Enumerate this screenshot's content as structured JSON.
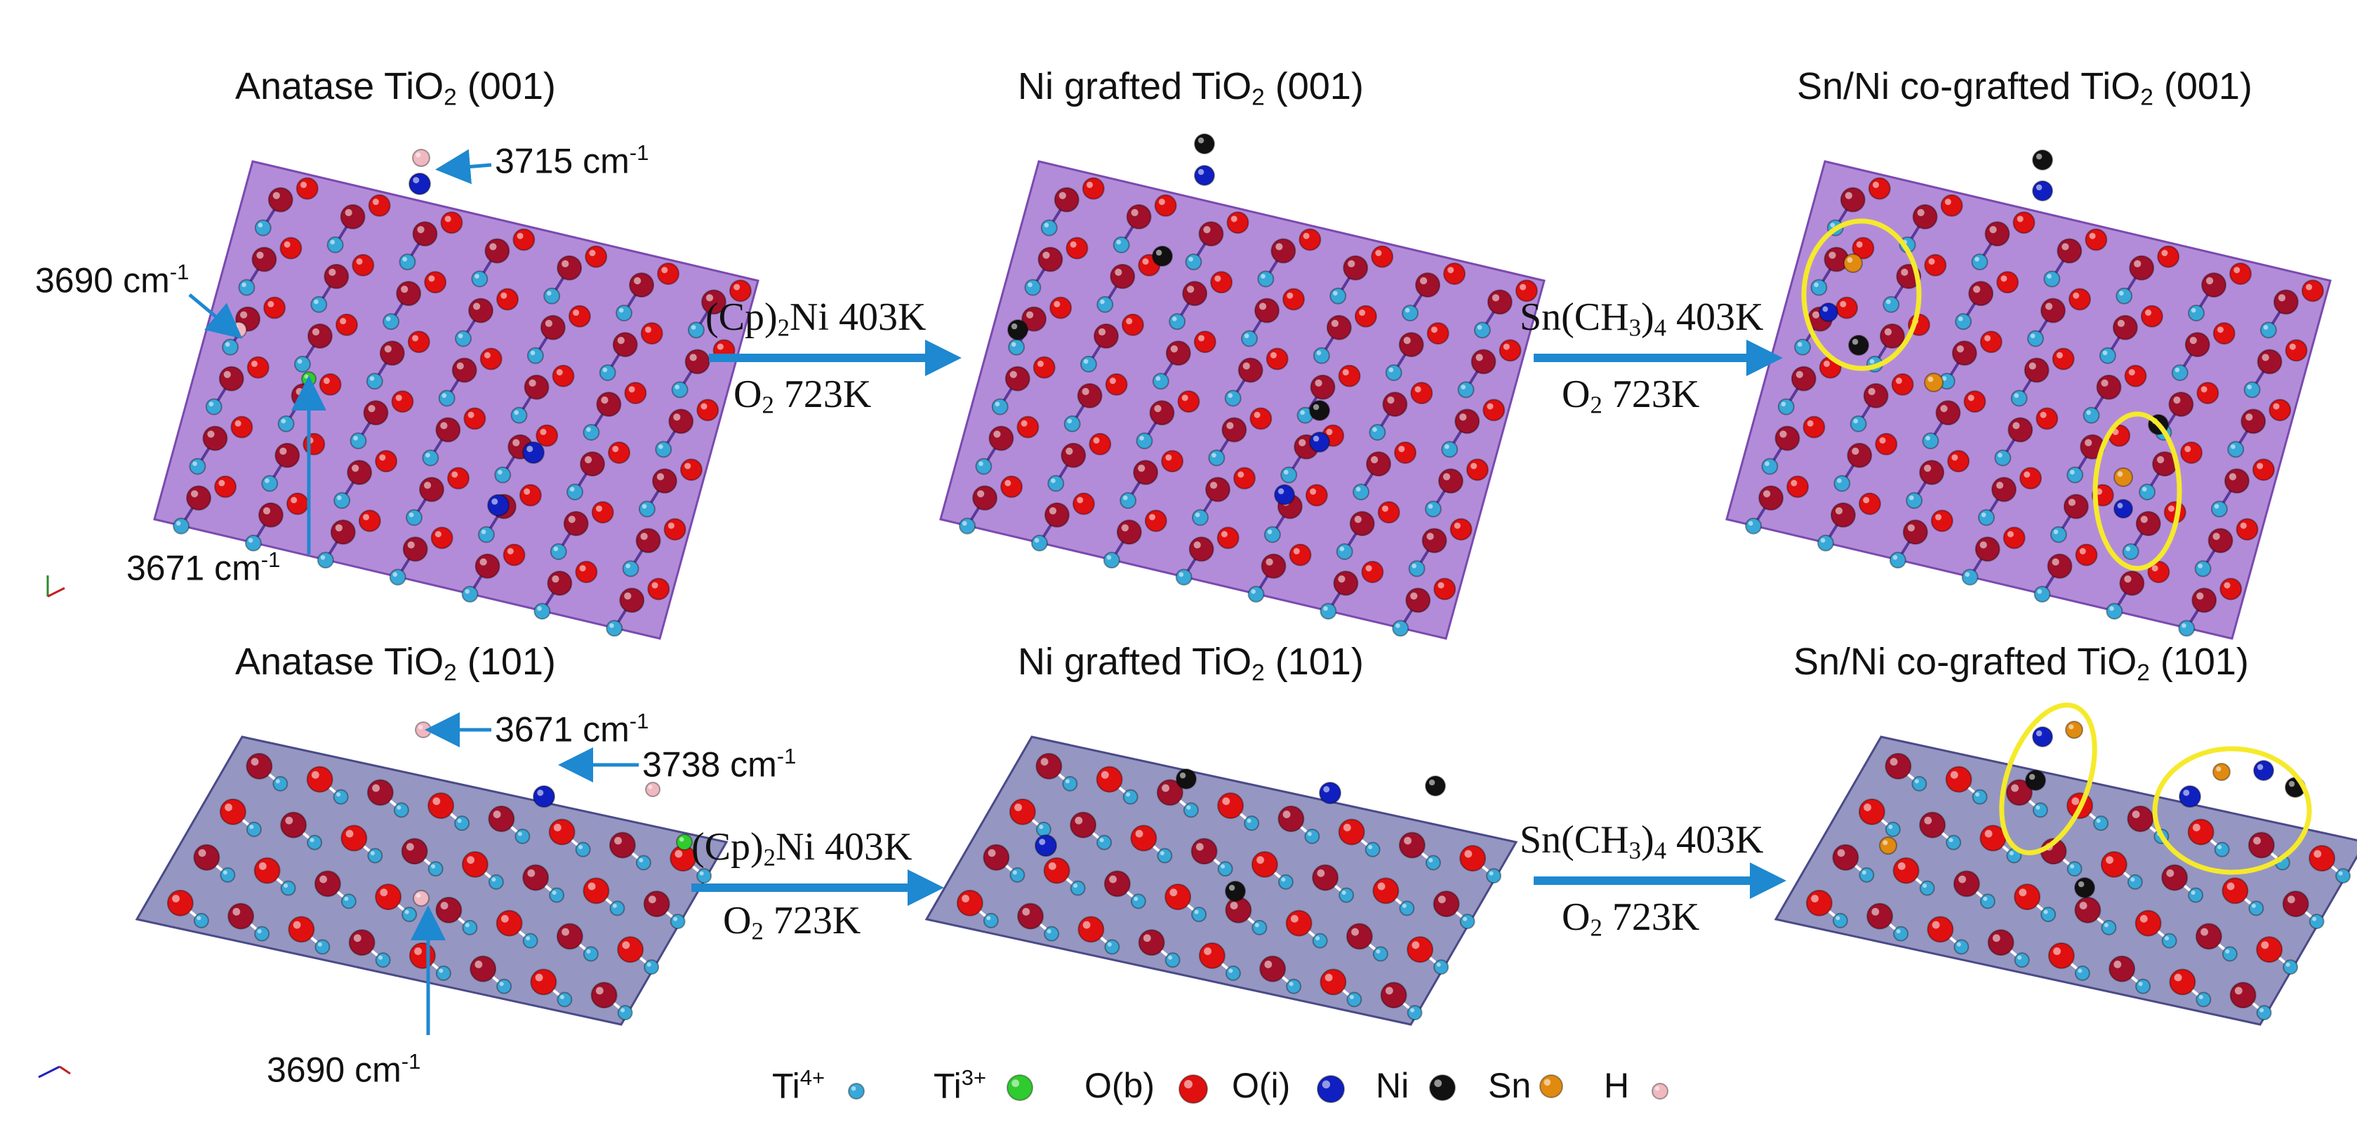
{
  "panels": {
    "p1": {
      "title_pre": "Anatase TiO",
      "title_sub": "2",
      "title_post": " (001)"
    },
    "p2": {
      "title_pre": "Ni grafted TiO",
      "title_sub": "2",
      "title_post": " (001)"
    },
    "p3": {
      "title_pre": "Sn/Ni co-grafted TiO",
      "title_sub": "2",
      "title_post": " (001)"
    },
    "p4": {
      "title_pre": "Anatase TiO",
      "title_sub": "2",
      "title_post": " (101)"
    },
    "p5": {
      "title_pre": "Ni grafted TiO",
      "title_sub": "2",
      "title_post": " (101)"
    },
    "p6": {
      "title_pre": "Sn/Ni co-grafted TiO",
      "title_sub": "2",
      "title_post": " (101)"
    }
  },
  "freq": {
    "a": {
      "num": "3715 cm",
      "exp": "-1"
    },
    "b": {
      "num": "3690 cm",
      "exp": "-1"
    },
    "c": {
      "num": "3671 cm",
      "exp": "-1"
    },
    "d": {
      "num": "3671 cm",
      "exp": "-1"
    },
    "e": {
      "num": "3738  cm",
      "exp": "-1"
    },
    "f": {
      "num": "3690 cm",
      "exp": "-1"
    }
  },
  "steps": {
    "ni": {
      "pre": "(Cp)",
      "sub": "2",
      "post": "Ni 403K",
      "o2_pre": "O",
      "o2_sub": "2",
      "o2_post": " 723K"
    },
    "sn": {
      "pre": "Sn(CH",
      "sub": "3",
      "post": ")",
      "sub2": "4",
      "post2": " 403K",
      "o2_pre": "O",
      "o2_sub": "2",
      "o2_post": " 723K"
    }
  },
  "legend": {
    "ti4": {
      "base": "Ti",
      "sup": "4+"
    },
    "ti3": {
      "base": "Ti",
      "sup": "3+"
    },
    "ob": "O(b)",
    "oi": "O(i)",
    "ni": "Ni",
    "sn": "Sn",
    "h": "H"
  },
  "colors": {
    "ti4": "#38a8d8",
    "ti3": "#2ecc2e",
    "ob": "#e01010",
    "ob_dark": "#a0102a",
    "oi": "#1020c0",
    "ni": "#111111",
    "sn": "#e08a10",
    "h": "#f0b8c0",
    "arrow": "#1e88d0",
    "plane001": "#9966cc",
    "plane101": "#6a6aa8",
    "highlight": "#f5ea2a"
  }
}
